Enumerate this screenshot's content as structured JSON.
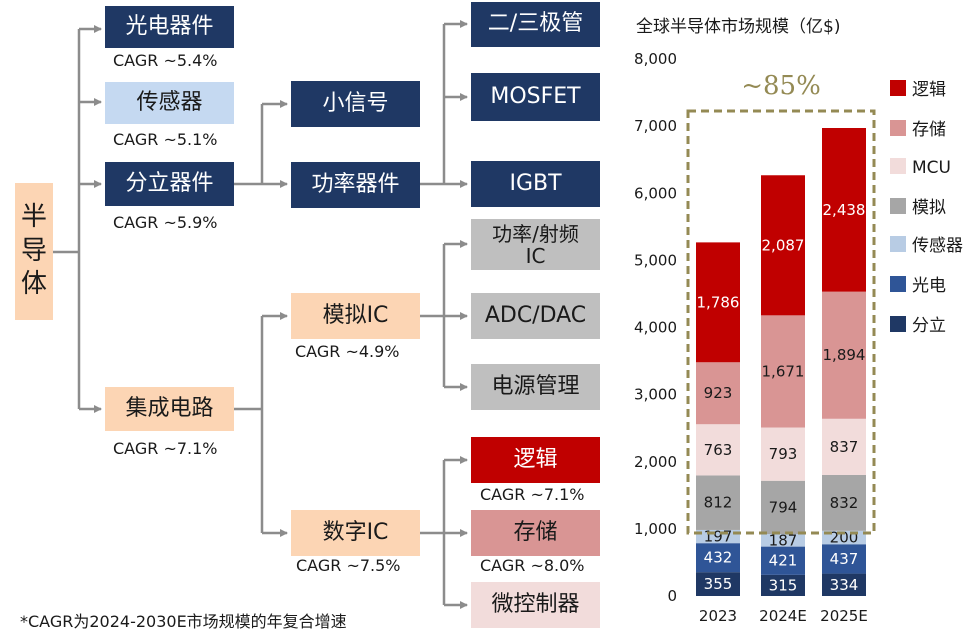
{
  "tree": {
    "root": "半\n导\n体",
    "discrete_groups": {
      "optoelectronics": {
        "label": "光电器件",
        "cagr": "CAGR ~5.4%"
      },
      "sensors": {
        "label": "传感器",
        "cagr": "CAGR ~5.1%"
      },
      "discrete": {
        "label": "分立器件",
        "cagr": "CAGR ~5.9%"
      }
    },
    "discrete_children": {
      "small_signal": "小信号",
      "power_devices": "功率器件"
    },
    "discrete_leaves": {
      "diode_triode": "二/三极管",
      "mosfet": "MOSFET",
      "igbt": "IGBT"
    },
    "ic": {
      "label": "集成电路",
      "cagr": "CAGR ~7.1%"
    },
    "analog_ic": {
      "label": "模拟IC",
      "cagr": "CAGR ~4.9%"
    },
    "digital_ic": {
      "label": "数字IC",
      "cagr": "CAGR ~7.5%"
    },
    "analog_leaves": {
      "power_rf_ic": "功率/射频\nIC",
      "adc_dac": "ADC/DAC",
      "power_management": "电源管理"
    },
    "digital_leaves": {
      "logic": {
        "label": "逻辑",
        "cagr": "CAGR ~7.1%"
      },
      "memory": {
        "label": "存储",
        "cagr": "CAGR ~8.0%"
      },
      "mcu": {
        "label": "微控制器"
      }
    },
    "footnote": "*CAGR为2024-2030E市场规模的年复合增速"
  },
  "colors": {
    "navy": "#1f3864",
    "light_blue": "#c5d9f1",
    "peach": "#fcd5b4",
    "grey": "#bfbfbf",
    "logic_red": "#c00000",
    "memory_rose": "#d99594",
    "mcu_pink": "#f2dcdb",
    "analog_grey": "#a6a6a6",
    "sensor_blue": "#b8cce4",
    "opto_blue": "#2f5597",
    "discrete_navy": "#1f3864",
    "highlight_olive": "#948a54",
    "connector_grey": "#8c8c8c"
  },
  "chart_data": {
    "type": "bar",
    "stacked": true,
    "title": "全球半导体市场规模（亿$)",
    "categories": [
      "2023",
      "2024E",
      "2025E"
    ],
    "ylim": [
      0,
      8000
    ],
    "yticks": [
      "0",
      "1,000",
      "2,000",
      "3,000",
      "4,000",
      "5,000",
      "6,000",
      "7,000",
      "8,000"
    ],
    "ytick_values": [
      0,
      1000,
      2000,
      3000,
      4000,
      5000,
      6000,
      7000,
      8000
    ],
    "grid": false,
    "legend_position": "right",
    "series": [
      {
        "name": "分立",
        "color": "#1f3864",
        "values": [
          355,
          315,
          334
        ],
        "labels": [
          "355",
          "315",
          "334"
        ]
      },
      {
        "name": "光电",
        "color": "#2f5597",
        "values": [
          432,
          421,
          437
        ],
        "labels": [
          "432",
          "421",
          "437"
        ]
      },
      {
        "name": "传感器",
        "color": "#b8cce4",
        "values": [
          197,
          187,
          200
        ],
        "labels": [
          "197",
          "187",
          "200"
        ]
      },
      {
        "name": "模拟",
        "color": "#a6a6a6",
        "values": [
          812,
          794,
          832
        ],
        "labels": [
          "812",
          "794",
          "832"
        ]
      },
      {
        "name": "MCU",
        "color": "#f2dcdb",
        "values": [
          763,
          793,
          837
        ],
        "labels": [
          "763",
          "793",
          "837"
        ]
      },
      {
        "name": "存储",
        "color": "#d99594",
        "values": [
          923,
          1671,
          1894
        ],
        "labels": [
          "923",
          "1,671",
          "1,894"
        ]
      },
      {
        "name": "逻辑",
        "color": "#c00000",
        "values": [
          1786,
          2087,
          2438
        ],
        "labels": [
          "1,786",
          "2,087",
          "2,438"
        ]
      }
    ],
    "legend_order": [
      "逻辑",
      "存储",
      "MCU",
      "模拟",
      "传感器",
      "光电",
      "分立"
    ],
    "annotation": "~85%"
  }
}
